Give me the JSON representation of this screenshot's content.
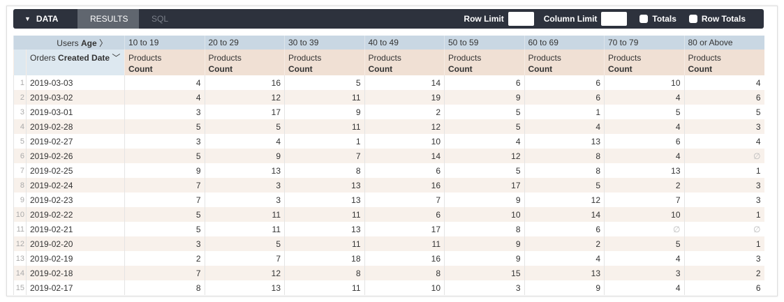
{
  "toolbar": {
    "data_label": "DATA",
    "tabs": [
      "RESULTS",
      "SQL"
    ],
    "row_limit_label": "Row Limit",
    "row_limit_value": "",
    "column_limit_label": "Column Limit",
    "column_limit_value": "",
    "totals_label": "Totals",
    "row_totals_label": "Row Totals",
    "totals_checked": false,
    "row_totals_checked": false
  },
  "pivot": {
    "dimension_prefix": "Users",
    "dimension_name": "Age",
    "row_dim_prefix": "Orders",
    "row_dim_name": "Created Date",
    "measure_prefix": "Products",
    "measure_name": "Count",
    "null_symbol": "∅"
  },
  "columns": [
    "10 to 19",
    "20 to 29",
    "30 to 39",
    "40 to 49",
    "50 to 59",
    "60 to 69",
    "70 to 79",
    "80 or Above"
  ],
  "rows": [
    {
      "date": "2019-03-03",
      "values": [
        4,
        16,
        5,
        14,
        6,
        6,
        10,
        4
      ]
    },
    {
      "date": "2019-03-02",
      "values": [
        4,
        12,
        11,
        19,
        9,
        6,
        4,
        6
      ]
    },
    {
      "date": "2019-03-01",
      "values": [
        3,
        17,
        9,
        2,
        5,
        1,
        5,
        5
      ]
    },
    {
      "date": "2019-02-28",
      "values": [
        5,
        5,
        11,
        12,
        5,
        4,
        4,
        3
      ]
    },
    {
      "date": "2019-02-27",
      "values": [
        3,
        4,
        1,
        10,
        4,
        13,
        6,
        4
      ]
    },
    {
      "date": "2019-02-26",
      "values": [
        5,
        9,
        7,
        14,
        12,
        8,
        4,
        null
      ]
    },
    {
      "date": "2019-02-25",
      "values": [
        9,
        13,
        8,
        6,
        5,
        8,
        13,
        1
      ]
    },
    {
      "date": "2019-02-24",
      "values": [
        7,
        3,
        13,
        16,
        17,
        5,
        2,
        3
      ]
    },
    {
      "date": "2019-02-23",
      "values": [
        7,
        3,
        13,
        7,
        9,
        12,
        7,
        3
      ]
    },
    {
      "date": "2019-02-22",
      "values": [
        5,
        11,
        11,
        6,
        10,
        14,
        10,
        1
      ]
    },
    {
      "date": "2019-02-21",
      "values": [
        5,
        11,
        13,
        17,
        8,
        6,
        null,
        null
      ]
    },
    {
      "date": "2019-02-20",
      "values": [
        3,
        5,
        11,
        11,
        9,
        2,
        5,
        1
      ]
    },
    {
      "date": "2019-02-19",
      "values": [
        2,
        7,
        18,
        16,
        9,
        4,
        4,
        3
      ]
    },
    {
      "date": "2019-02-18",
      "values": [
        7,
        12,
        8,
        8,
        15,
        13,
        3,
        2
      ]
    },
    {
      "date": "2019-02-17",
      "values": [
        8,
        13,
        11,
        10,
        3,
        9,
        4,
        6
      ]
    }
  ]
}
